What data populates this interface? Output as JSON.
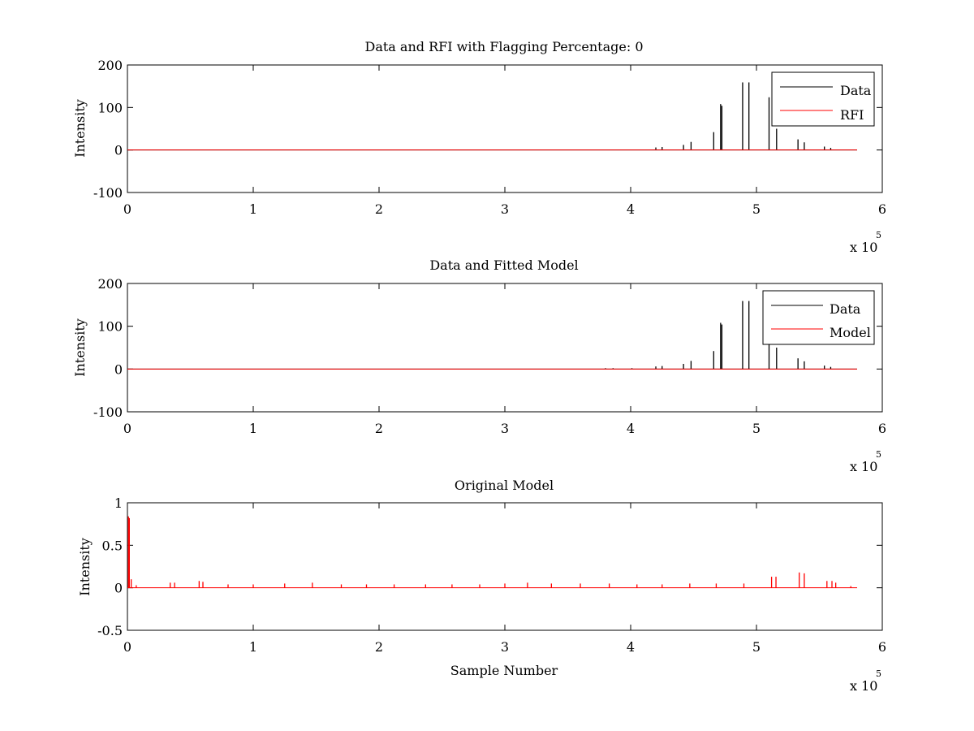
{
  "figure": {
    "background": "#ffffff",
    "axis_color": "#000000"
  },
  "chart_data": [
    {
      "type": "line",
      "title": "Data and RFI with Flagging Percentage: 0",
      "xlabel": "",
      "ylabel": "Intensity",
      "xlim": [
        0,
        600000
      ],
      "ylim": [
        -100,
        200
      ],
      "xticks": [
        0,
        100000,
        200000,
        300000,
        400000,
        500000,
        600000
      ],
      "xtick_labels": [
        "0",
        "1",
        "2",
        "3",
        "4",
        "5",
        "6"
      ],
      "yticks": [
        -100,
        0,
        100,
        200
      ],
      "ytick_labels": [
        "-100",
        "0",
        "100",
        "200"
      ],
      "x_multiplier": {
        "base": "x 10",
        "exponent": "5"
      },
      "legend": {
        "position": "top-right",
        "entries": [
          "Data",
          "RFI"
        ]
      },
      "series": [
        {
          "name": "Data",
          "color": "#000000",
          "baseline": 0,
          "x_end": 580000,
          "spikes": [
            {
              "x": 420000,
              "y": 6
            },
            {
              "x": 425000,
              "y": 7
            },
            {
              "x": 442000,
              "y": 12
            },
            {
              "x": 448000,
              "y": 19
            },
            {
              "x": 466000,
              "y": 42
            },
            {
              "x": 471500,
              "y": 108
            },
            {
              "x": 472500,
              "y": 104
            },
            {
              "x": 489000,
              "y": 159
            },
            {
              "x": 494000,
              "y": 159
            },
            {
              "x": 510000,
              "y": 124
            },
            {
              "x": 516000,
              "y": 50
            },
            {
              "x": 533000,
              "y": 25
            },
            {
              "x": 538000,
              "y": 18
            },
            {
              "x": 554000,
              "y": 8
            },
            {
              "x": 559000,
              "y": 5
            }
          ]
        },
        {
          "name": "RFI",
          "color": "#ff0000",
          "baseline": 0,
          "x_end": 580000,
          "spikes": []
        }
      ]
    },
    {
      "type": "line",
      "title": "Data and Fitted Model",
      "xlabel": "",
      "ylabel": "Intensity",
      "xlim": [
        0,
        600000
      ],
      "ylim": [
        -100,
        200
      ],
      "xticks": [
        0,
        100000,
        200000,
        300000,
        400000,
        500000,
        600000
      ],
      "xtick_labels": [
        "0",
        "1",
        "2",
        "3",
        "4",
        "5",
        "6"
      ],
      "yticks": [
        -100,
        0,
        100,
        200
      ],
      "ytick_labels": [
        "-100",
        "0",
        "100",
        "200"
      ],
      "x_multiplier": {
        "base": "x 10",
        "exponent": "5"
      },
      "legend": {
        "position": "top-right",
        "entries": [
          "Data",
          "Model"
        ]
      },
      "series": [
        {
          "name": "Data",
          "color": "#000000",
          "baseline": 0,
          "x_end": 580000,
          "spikes": [
            {
              "x": 380000,
              "y": 2
            },
            {
              "x": 386000,
              "y": 2
            },
            {
              "x": 401000,
              "y": 2
            },
            {
              "x": 420000,
              "y": 6
            },
            {
              "x": 425000,
              "y": 7
            },
            {
              "x": 442000,
              "y": 12
            },
            {
              "x": 448000,
              "y": 19
            },
            {
              "x": 466000,
              "y": 42
            },
            {
              "x": 471500,
              "y": 108
            },
            {
              "x": 472500,
              "y": 104
            },
            {
              "x": 489000,
              "y": 159
            },
            {
              "x": 494000,
              "y": 159
            },
            {
              "x": 510000,
              "y": 124
            },
            {
              "x": 516000,
              "y": 50
            },
            {
              "x": 533000,
              "y": 25
            },
            {
              "x": 538000,
              "y": 18
            },
            {
              "x": 554000,
              "y": 8
            },
            {
              "x": 559000,
              "y": 5
            }
          ]
        },
        {
          "name": "Model",
          "color": "#ff0000",
          "baseline": 0,
          "x_end": 580000,
          "spikes": []
        }
      ]
    },
    {
      "type": "line",
      "title": "Original Model",
      "xlabel": "Sample Number",
      "ylabel": "Intensity",
      "xlim": [
        0,
        600000
      ],
      "ylim": [
        -0.5,
        1
      ],
      "xticks": [
        0,
        100000,
        200000,
        300000,
        400000,
        500000,
        600000
      ],
      "xtick_labels": [
        "0",
        "1",
        "2",
        "3",
        "4",
        "5",
        "6"
      ],
      "yticks": [
        -0.5,
        0,
        0.5,
        1
      ],
      "ytick_labels": [
        "-0.5",
        "0",
        "0.5",
        "1"
      ],
      "x_multiplier": {
        "base": "x 10",
        "exponent": "5"
      },
      "legend": null,
      "series": [
        {
          "name": "",
          "color": "#ff0000",
          "baseline": 0,
          "x_end": 580000,
          "spikes": [
            {
              "x": 800,
              "y": 0.84
            },
            {
              "x": 1500,
              "y": 0.82
            },
            {
              "x": 3000,
              "y": 0.1
            },
            {
              "x": 7000,
              "y": 0.03
            },
            {
              "x": 34000,
              "y": 0.06
            },
            {
              "x": 37500,
              "y": 0.06
            },
            {
              "x": 57000,
              "y": 0.08
            },
            {
              "x": 60000,
              "y": 0.07
            },
            {
              "x": 80000,
              "y": 0.04
            },
            {
              "x": 100000,
              "y": 0.04
            },
            {
              "x": 125000,
              "y": 0.05
            },
            {
              "x": 147000,
              "y": 0.06
            },
            {
              "x": 170000,
              "y": 0.04
            },
            {
              "x": 190000,
              "y": 0.04
            },
            {
              "x": 212000,
              "y": 0.04
            },
            {
              "x": 237000,
              "y": 0.04
            },
            {
              "x": 258000,
              "y": 0.04
            },
            {
              "x": 280000,
              "y": 0.04
            },
            {
              "x": 300000,
              "y": 0.05
            },
            {
              "x": 318000,
              "y": 0.06
            },
            {
              "x": 337000,
              "y": 0.05
            },
            {
              "x": 360000,
              "y": 0.05
            },
            {
              "x": 383000,
              "y": 0.05
            },
            {
              "x": 405000,
              "y": 0.04
            },
            {
              "x": 425000,
              "y": 0.04
            },
            {
              "x": 447000,
              "y": 0.05
            },
            {
              "x": 468000,
              "y": 0.05
            },
            {
              "x": 490000,
              "y": 0.05
            },
            {
              "x": 512000,
              "y": 0.13
            },
            {
              "x": 515500,
              "y": 0.13
            },
            {
              "x": 534000,
              "y": 0.18
            },
            {
              "x": 538000,
              "y": 0.17
            },
            {
              "x": 556000,
              "y": 0.08
            },
            {
              "x": 560000,
              "y": 0.08
            },
            {
              "x": 563000,
              "y": 0.06
            },
            {
              "x": 575000,
              "y": 0.02
            }
          ]
        }
      ]
    }
  ]
}
